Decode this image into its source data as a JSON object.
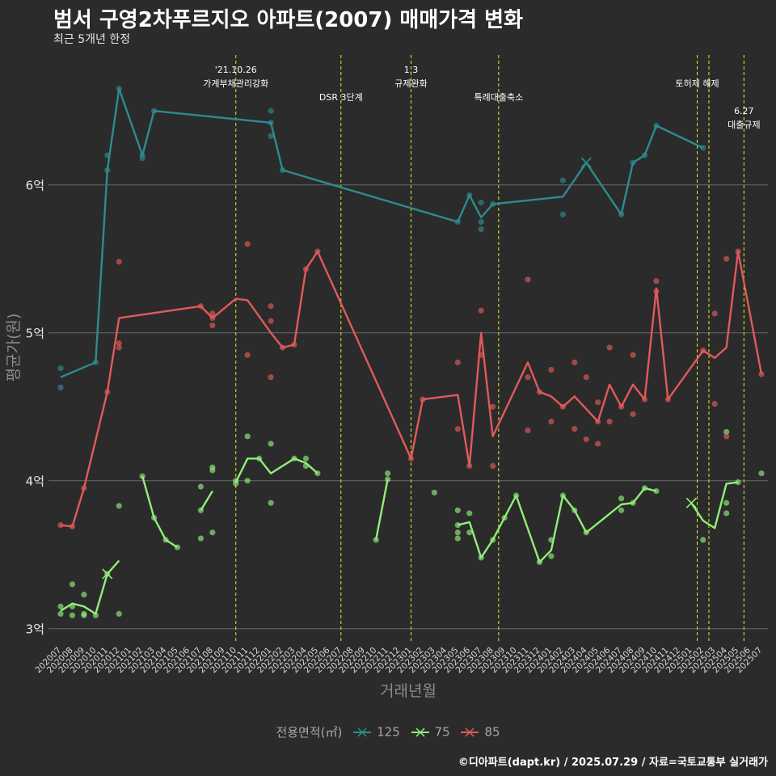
{
  "title": "범서 구영2차푸르지오 아파트(2007) 매매가격 변화",
  "subtitle": "최근 5개년 한정",
  "caption": "©디아파트(dapt.kr) / 2025.07.29 / 자료=국토교통부 실거래가",
  "chart_data": {
    "type": "line",
    "xlabel": "거래년월",
    "ylabel": "평균가(원)",
    "ylim": [
      2.9,
      6.9
    ],
    "yticks": [
      3,
      4,
      5,
      6
    ],
    "ytick_labels": [
      "3억",
      "4억",
      "5억",
      "6억"
    ],
    "grid": true,
    "legend_title": "전용면적(㎡)",
    "legend_position": "bottom",
    "categories": [
      "202007",
      "202008",
      "202009",
      "202010",
      "202011",
      "202012",
      "202101",
      "202102",
      "202103",
      "202104",
      "202105",
      "202106",
      "202107",
      "202108",
      "202109",
      "202110",
      "202111",
      "202112",
      "202201",
      "202202",
      "202203",
      "202204",
      "202205",
      "202206",
      "202207",
      "202208",
      "202209",
      "202210",
      "202211",
      "202212",
      "202301",
      "202302",
      "202303",
      "202304",
      "202305",
      "202306",
      "202307",
      "202308",
      "202309",
      "202310",
      "202311",
      "202312",
      "202401",
      "202402",
      "202403",
      "202404",
      "202405",
      "202406",
      "202407",
      "202408",
      "202409",
      "202410",
      "202411",
      "202412",
      "202501",
      "202502",
      "202503",
      "202504",
      "202505",
      "202506",
      "202507"
    ],
    "events": [
      {
        "x": 15,
        "label": "'21.10.26\n가계부채관리강화",
        "row": 0
      },
      {
        "x": 24,
        "label": "DSR 3단계",
        "row": 1
      },
      {
        "x": 30,
        "label": "1.3\n규제완화",
        "row": 0
      },
      {
        "x": 37.5,
        "label": "특례대출축소",
        "row": 1
      },
      {
        "x": 54.5,
        "label": "토허제 해제",
        "row": 0.5
      },
      {
        "x": 55.5,
        "label": "",
        "row": 0
      },
      {
        "x": 58.5,
        "label": "6.27\n대출규제",
        "row": 1.5
      }
    ],
    "series": [
      {
        "name": "125",
        "color": "#2e8b8f",
        "line": [
          [
            0,
            4.7
          ],
          [
            3,
            4.8
          ],
          [
            4,
            6.1
          ],
          [
            5,
            6.65
          ],
          [
            7,
            6.2
          ],
          [
            8,
            6.5
          ],
          [
            18,
            6.42
          ],
          [
            19,
            6.1
          ],
          [
            34,
            5.75
          ],
          [
            35,
            5.93
          ],
          [
            36,
            5.78
          ],
          [
            37,
            5.87
          ],
          [
            43,
            5.92
          ],
          [
            45,
            6.15
          ],
          [
            48,
            5.8
          ],
          [
            49,
            6.15
          ],
          [
            50,
            6.2
          ],
          [
            51,
            6.4
          ],
          [
            55,
            6.25
          ]
        ],
        "points": [
          [
            0,
            4.76
          ],
          [
            0,
            4.63
          ],
          [
            3,
            4.8
          ],
          [
            4,
            6.2
          ],
          [
            4,
            6.1
          ],
          [
            5,
            6.65
          ],
          [
            7,
            6.2
          ],
          [
            7,
            6.18
          ],
          [
            8,
            6.5
          ],
          [
            18,
            6.5
          ],
          [
            18,
            6.42
          ],
          [
            18,
            6.33
          ],
          [
            19,
            6.1
          ],
          [
            34,
            5.75
          ],
          [
            35,
            5.93
          ],
          [
            36,
            5.88
          ],
          [
            36,
            5.75
          ],
          [
            36,
            5.7
          ],
          [
            37,
            5.87
          ],
          [
            43,
            6.03
          ],
          [
            43,
            5.8
          ],
          [
            48,
            5.8
          ],
          [
            49,
            6.15
          ],
          [
            50,
            6.2
          ],
          [
            51,
            6.4
          ],
          [
            55,
            6.25
          ]
        ],
        "x_marks": [
          [
            45,
            6.15
          ]
        ]
      },
      {
        "name": "75",
        "color": "#90ee7a",
        "line_segments": [
          [
            [
              0,
              3.12
            ],
            [
              1,
              3.17
            ],
            [
              2,
              3.15
            ],
            [
              3,
              3.1
            ],
            [
              4,
              3.37
            ],
            [
              5,
              3.46
            ]
          ],
          [
            [
              7,
              4.03
            ],
            [
              8,
              3.75
            ],
            [
              9,
              3.6
            ],
            [
              10,
              3.55
            ]
          ],
          [
            [
              12,
              3.8
            ],
            [
              13,
              3.93
            ]
          ],
          [
            [
              15,
              3.99
            ],
            [
              16,
              4.15
            ],
            [
              17,
              4.15
            ],
            [
              18,
              4.05
            ],
            [
              20,
              4.15
            ],
            [
              21,
              4.12
            ],
            [
              22,
              4.05
            ]
          ],
          [
            [
              27,
              3.6
            ],
            [
              28,
              4.01
            ]
          ],
          [
            [
              34,
              3.7
            ],
            [
              35,
              3.72
            ],
            [
              36,
              3.48
            ],
            [
              37,
              3.6
            ],
            [
              38,
              3.75
            ],
            [
              39,
              3.9
            ],
            [
              41,
              3.45
            ],
            [
              42,
              3.53
            ],
            [
              43,
              3.9
            ],
            [
              44,
              3.8
            ],
            [
              45,
              3.65
            ],
            [
              48,
              3.84
            ],
            [
              49,
              3.85
            ],
            [
              50,
              3.95
            ],
            [
              51,
              3.93
            ]
          ],
          [
            [
              54,
              3.85
            ],
            [
              55,
              3.73
            ],
            [
              56,
              3.68
            ],
            [
              57,
              3.98
            ],
            [
              58,
              3.99
            ]
          ]
        ],
        "points": [
          [
            0,
            3.15
          ],
          [
            0,
            3.1
          ],
          [
            1,
            3.3
          ],
          [
            1,
            3.15
          ],
          [
            1,
            3.09
          ],
          [
            2,
            3.23
          ],
          [
            2,
            3.1
          ],
          [
            2,
            3.09
          ],
          [
            3,
            3.09
          ],
          [
            4,
            3.37
          ],
          [
            5,
            3.83
          ],
          [
            5,
            3.1
          ],
          [
            7,
            4.03
          ],
          [
            8,
            3.75
          ],
          [
            9,
            3.6
          ],
          [
            10,
            3.55
          ],
          [
            12,
            3.96
          ],
          [
            12,
            3.8
          ],
          [
            12,
            3.61
          ],
          [
            13,
            4.09
          ],
          [
            13,
            4.07
          ],
          [
            13,
            3.65
          ],
          [
            15,
            4.0
          ],
          [
            15,
            3.98
          ],
          [
            16,
            4.3
          ],
          [
            16,
            4.0
          ],
          [
            17,
            4.15
          ],
          [
            18,
            4.25
          ],
          [
            18,
            3.85
          ],
          [
            20,
            4.15
          ],
          [
            21,
            4.15
          ],
          [
            21,
            4.1
          ],
          [
            22,
            4.05
          ],
          [
            27,
            3.6
          ],
          [
            28,
            4.05
          ],
          [
            28,
            4.01
          ],
          [
            32,
            3.92
          ],
          [
            34,
            3.8
          ],
          [
            34,
            3.7
          ],
          [
            34,
            3.65
          ],
          [
            34,
            3.61
          ],
          [
            35,
            3.78
          ],
          [
            35,
            3.65
          ],
          [
            36,
            3.48
          ],
          [
            37,
            3.6
          ],
          [
            38,
            3.75
          ],
          [
            39,
            3.9
          ],
          [
            41,
            3.45
          ],
          [
            42,
            3.6
          ],
          [
            42,
            3.49
          ],
          [
            43,
            3.9
          ],
          [
            44,
            3.8
          ],
          [
            45,
            3.65
          ],
          [
            48,
            3.88
          ],
          [
            48,
            3.8
          ],
          [
            49,
            3.85
          ],
          [
            50,
            3.95
          ],
          [
            51,
            3.93
          ],
          [
            55,
            3.6
          ],
          [
            57,
            4.33
          ],
          [
            57,
            3.85
          ],
          [
            57,
            3.78
          ],
          [
            58,
            3.99
          ],
          [
            60,
            4.05
          ]
        ],
        "x_marks": [
          [
            4,
            3.37
          ],
          [
            54,
            3.85
          ]
        ]
      },
      {
        "name": "85",
        "color": "#e05a5a",
        "line": [
          [
            0,
            3.7
          ],
          [
            1,
            3.69
          ],
          [
            2,
            3.95
          ],
          [
            4,
            4.6
          ],
          [
            5,
            5.1
          ],
          [
            12,
            5.18
          ],
          [
            13,
            5.1
          ],
          [
            15,
            5.23
          ],
          [
            16,
            5.22
          ],
          [
            18,
            5.0
          ],
          [
            19,
            4.9
          ],
          [
            20,
            4.92
          ],
          [
            21,
            5.43
          ],
          [
            22,
            5.55
          ],
          [
            30,
            4.15
          ],
          [
            31,
            4.55
          ],
          [
            34,
            4.58
          ],
          [
            35,
            4.1
          ],
          [
            36,
            5.0
          ],
          [
            37,
            4.3
          ],
          [
            40,
            4.8
          ],
          [
            41,
            4.6
          ],
          [
            42,
            4.57
          ],
          [
            43,
            4.5
          ],
          [
            44,
            4.57
          ],
          [
            46,
            4.4
          ],
          [
            47,
            4.65
          ],
          [
            48,
            4.5
          ],
          [
            49,
            4.65
          ],
          [
            50,
            4.55
          ],
          [
            51,
            5.3
          ],
          [
            52,
            4.55
          ],
          [
            55,
            4.88
          ],
          [
            56,
            4.83
          ],
          [
            57,
            4.9
          ],
          [
            58,
            5.55
          ],
          [
            60,
            4.72
          ]
        ],
        "points": [
          [
            0,
            3.7
          ],
          [
            1,
            3.69
          ],
          [
            2,
            3.95
          ],
          [
            4,
            4.6
          ],
          [
            5,
            5.48
          ],
          [
            5,
            4.93
          ],
          [
            5,
            4.9
          ],
          [
            12,
            5.18
          ],
          [
            13,
            5.13
          ],
          [
            13,
            5.1
          ],
          [
            13,
            5.05
          ],
          [
            16,
            5.6
          ],
          [
            16,
            4.85
          ],
          [
            18,
            5.18
          ],
          [
            18,
            5.08
          ],
          [
            18,
            4.7
          ],
          [
            19,
            4.9
          ],
          [
            20,
            4.92
          ],
          [
            21,
            5.43
          ],
          [
            22,
            5.55
          ],
          [
            30,
            4.15
          ],
          [
            31,
            4.55
          ],
          [
            34,
            4.8
          ],
          [
            34,
            4.35
          ],
          [
            35,
            4.1
          ],
          [
            36,
            5.15
          ],
          [
            36,
            4.85
          ],
          [
            37,
            4.5
          ],
          [
            37,
            4.1
          ],
          [
            40,
            5.36
          ],
          [
            40,
            4.7
          ],
          [
            40,
            4.34
          ],
          [
            41,
            4.6
          ],
          [
            42,
            4.75
          ],
          [
            42,
            4.4
          ],
          [
            43,
            4.5
          ],
          [
            44,
            4.8
          ],
          [
            44,
            4.35
          ],
          [
            45,
            4.7
          ],
          [
            45,
            4.28
          ],
          [
            46,
            4.53
          ],
          [
            46,
            4.4
          ],
          [
            46,
            4.25
          ],
          [
            47,
            4.9
          ],
          [
            47,
            4.4
          ],
          [
            48,
            4.5
          ],
          [
            49,
            4.85
          ],
          [
            49,
            4.45
          ],
          [
            50,
            4.55
          ],
          [
            51,
            5.35
          ],
          [
            51,
            5.28
          ],
          [
            52,
            4.55
          ],
          [
            55,
            4.88
          ],
          [
            56,
            5.13
          ],
          [
            56,
            4.52
          ],
          [
            57,
            5.5
          ],
          [
            57,
            4.3
          ],
          [
            58,
            5.55
          ],
          [
            60,
            4.72
          ]
        ],
        "x_marks": []
      }
    ]
  }
}
